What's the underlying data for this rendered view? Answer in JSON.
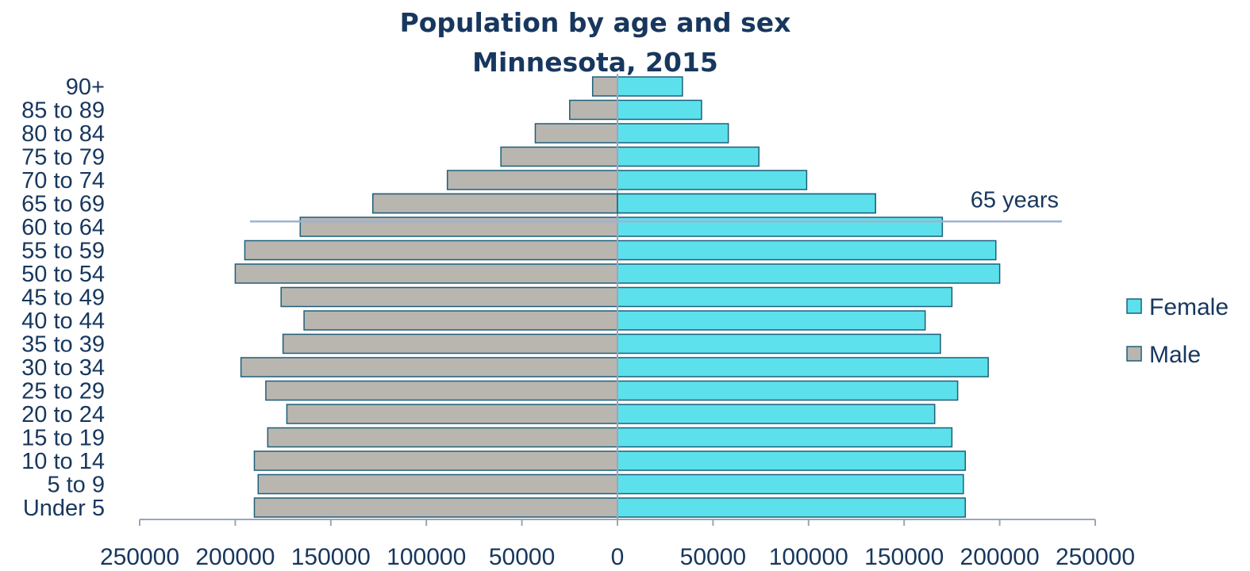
{
  "chart_data": {
    "type": "bar",
    "orientation": "horizontal",
    "layout": "population-pyramid",
    "title": "Population by age and sex",
    "subtitle": "Minnesota, 2015",
    "categories": [
      "Under 5",
      "5 to 9",
      "10 to 14",
      "15 to 19",
      "20 to 24",
      "25 to 29",
      "30 to 34",
      "35 to 39",
      "40 to 44",
      "45 to 49",
      "50 to 54",
      "55 to 59",
      "60 to 64",
      "65 to 69",
      "70 to 74",
      "75 to 79",
      "80 to 84",
      "85 to 89",
      "90+"
    ],
    "series": [
      {
        "name": "Female",
        "side": "right",
        "color": "#5ce1ec",
        "values": [
          182000,
          181000,
          182000,
          175000,
          166000,
          178000,
          194000,
          169000,
          161000,
          175000,
          200000,
          198000,
          170000,
          135000,
          99000,
          74000,
          58000,
          44000,
          34000
        ]
      },
      {
        "name": "Male",
        "side": "left",
        "color": "#b9b6b0",
        "values": [
          190000,
          188000,
          190000,
          183000,
          173000,
          184000,
          197000,
          175000,
          164000,
          176000,
          200000,
          195000,
          166000,
          128000,
          89000,
          61000,
          43000,
          25000,
          13000
        ]
      }
    ],
    "xlim": [
      -250000,
      250000
    ],
    "xticks": [
      "250000",
      "200000",
      "150000",
      "100000",
      "50000",
      "0",
      "50000",
      "100000",
      "150000",
      "200000",
      "250000"
    ],
    "bar_outline_color": "#1f5f7a",
    "axis_color": "#9aa6b8",
    "reference_line": {
      "label": "65 years",
      "between": [
        "60 to 64",
        "65 to 69"
      ],
      "color": "#9db3cf"
    },
    "legend": {
      "position": "right",
      "order": [
        "Female",
        "Male"
      ]
    },
    "grid": false
  }
}
